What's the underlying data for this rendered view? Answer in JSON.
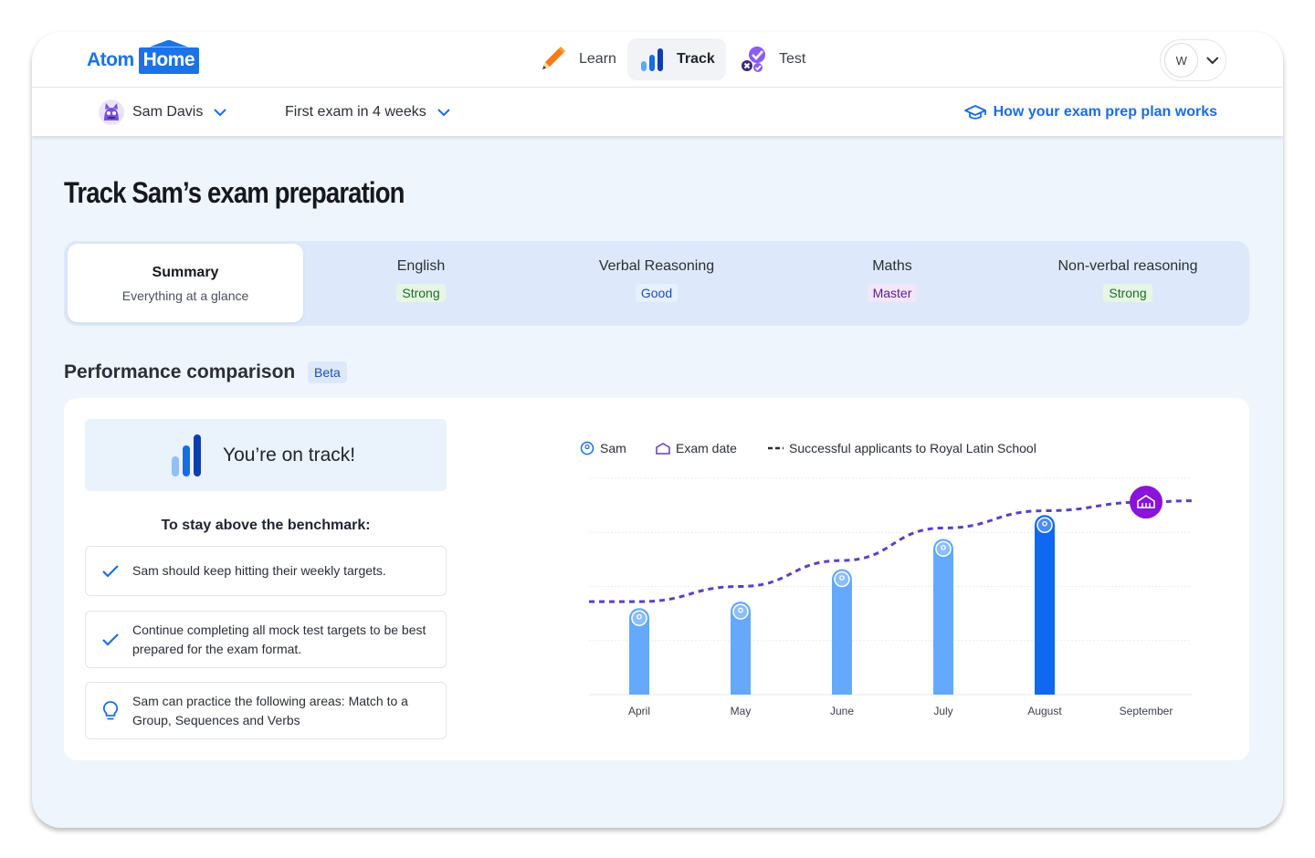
{
  "header": {
    "logo_part1": "Atom",
    "logo_part2": "Home",
    "nav": [
      {
        "label": "Learn",
        "icon": "pencil-icon",
        "active": false
      },
      {
        "label": "Track",
        "icon": "bar-chart-icon",
        "active": true
      },
      {
        "label": "Test",
        "icon": "checklist-icon",
        "active": false
      }
    ],
    "avatar_initial": "W"
  },
  "subbar": {
    "student_name": "Sam Davis",
    "exam_countdown": "First exam in 4 weeks",
    "help_link": "How your exam prep plan works"
  },
  "page_title": "Track Sam’s exam preparation",
  "tabs": [
    {
      "title": "Summary",
      "subtitle": "Everything at a glance",
      "active": true
    },
    {
      "title": "English",
      "badge": "Strong"
    },
    {
      "title": "Verbal Reasoning",
      "badge": "Good"
    },
    {
      "title": "Maths",
      "badge": "Master"
    },
    {
      "title": "Non-verbal reasoning",
      "badge": "Strong"
    }
  ],
  "performance": {
    "title": "Performance comparison",
    "badge": "Beta",
    "status": "You’re on track!",
    "benchmark_heading": "To stay above the benchmark:",
    "tips": [
      {
        "icon": "check-icon",
        "text": "Sam should keep hitting their weekly targets."
      },
      {
        "icon": "check-icon",
        "text": "Continue completing all mock test targets to be best prepared for the exam format."
      },
      {
        "icon": "lightbulb-icon",
        "text": "Sam can practice the following areas: Match to a Group, Sequences and Verbs"
      }
    ]
  },
  "colors": {
    "brand_blue": "#1a73e8",
    "bar_light": "#64a9fb",
    "bar_current": "#0f67f2",
    "benchmark_line": "#5b3fc4",
    "exam_marker": "#8a14d9"
  },
  "chart_data": {
    "type": "bar",
    "legend": [
      "Sam",
      "Exam date",
      "Successful applicants to Royal Latin School"
    ],
    "legend_placement": "top",
    "categories": [
      "April",
      "May",
      "June",
      "July",
      "August",
      "September"
    ],
    "series": [
      {
        "name": "Sam",
        "values": [
          4,
          4.3,
          5.8,
          7.2,
          8.3,
          null
        ],
        "highlight_index": 4
      },
      {
        "name": "Successful applicants to Royal Latin School",
        "values": [
          4.3,
          5,
          6.2,
          7.7,
          8.5,
          8.9
        ],
        "style": "dashed"
      }
    ],
    "exam_date_category": "September",
    "ylim": [
      0,
      10
    ],
    "grid": true
  }
}
